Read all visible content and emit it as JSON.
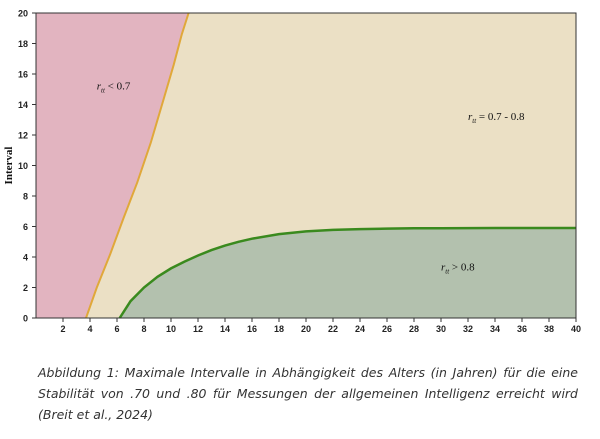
{
  "chart_data": {
    "type": "area",
    "xlabel": "",
    "ylabel": "Interval",
    "xlim": [
      0,
      40
    ],
    "ylim": [
      0,
      20
    ],
    "x_ticks": [
      2,
      4,
      6,
      8,
      10,
      12,
      14,
      16,
      18,
      20,
      22,
      24,
      26,
      28,
      30,
      32,
      34,
      36,
      38,
      40
    ],
    "y_ticks": [
      0,
      2,
      4,
      6,
      8,
      10,
      12,
      14,
      16,
      18,
      20
    ],
    "grid": false,
    "series": [
      {
        "name": "r = 0.7",
        "color": "#e0a83a",
        "x": [
          3.7,
          4.5,
          5.5,
          6.5,
          7.5,
          8.5,
          9.5,
          10.2,
          10.8,
          11.3
        ],
        "y": [
          0,
          2.0,
          4.2,
          6.6,
          8.9,
          11.5,
          14.5,
          16.6,
          18.6,
          20
        ]
      },
      {
        "name": "r = 0.8",
        "color": "#3a8a1e",
        "x": [
          6.2,
          7,
          8,
          9,
          10,
          11,
          12,
          13,
          14,
          15,
          16,
          18,
          20,
          22,
          24,
          26,
          28,
          30,
          34,
          40
        ],
        "y": [
          0,
          1.1,
          2.0,
          2.7,
          3.25,
          3.7,
          4.1,
          4.45,
          4.75,
          5.0,
          5.2,
          5.5,
          5.68,
          5.78,
          5.83,
          5.86,
          5.88,
          5.89,
          5.9,
          5.9
        ]
      }
    ],
    "regions": [
      {
        "label_main": "r",
        "label_sub": "tt",
        "label_rest": " < 0.7",
        "color": "#e2b4c0",
        "at": [
          4.5,
          15
        ]
      },
      {
        "label_main": "r",
        "label_sub": "tt",
        "label_rest": " = 0.7 - 0.8",
        "color": "#ebe0c5",
        "at": [
          32,
          13
        ]
      },
      {
        "label_main": "r",
        "label_sub": "tt",
        "label_rest": " > 0.8",
        "color": "#b3c1ae",
        "at": [
          30,
          3.1
        ]
      }
    ]
  },
  "caption": "Abbildung 1: Maximale Intervalle in Abhängigkeit des Alters (in Jahren) für die eine Stabilität von .70 und .80 für Messungen der allgemeinen Intelligenz erreicht wird (Breit et al., 2024)"
}
